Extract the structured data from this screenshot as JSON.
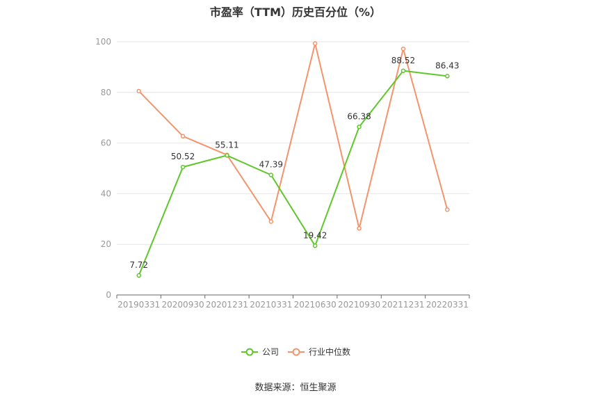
{
  "chart_data": {
    "type": "line",
    "title": "市盈率（TTM）历史百分位（%）",
    "categories": [
      "20190331",
      "20200930",
      "20201231",
      "20210331",
      "20210630",
      "20210930",
      "20211231",
      "20220331"
    ],
    "series": [
      {
        "name": "公司",
        "values": [
          7.72,
          50.52,
          55.11,
          47.39,
          19.42,
          66.38,
          88.52,
          86.43
        ],
        "color": "#5ec729",
        "labels": [
          "7.72",
          "50.52",
          "55.11",
          "47.39",
          "19.42",
          "66.38",
          "88.52",
          "86.43"
        ]
      },
      {
        "name": "行业中位数",
        "values": [
          80.5,
          62.7,
          55.3,
          29.0,
          99.3,
          26.3,
          97.2,
          33.7
        ],
        "color": "#f5936a"
      }
    ],
    "ylim": [
      0,
      100
    ],
    "yticks": [
      "0",
      "20",
      "40",
      "60",
      "80",
      "100"
    ],
    "grid": true,
    "legend_position": "bottom"
  },
  "source": "数据来源：恒生聚源"
}
